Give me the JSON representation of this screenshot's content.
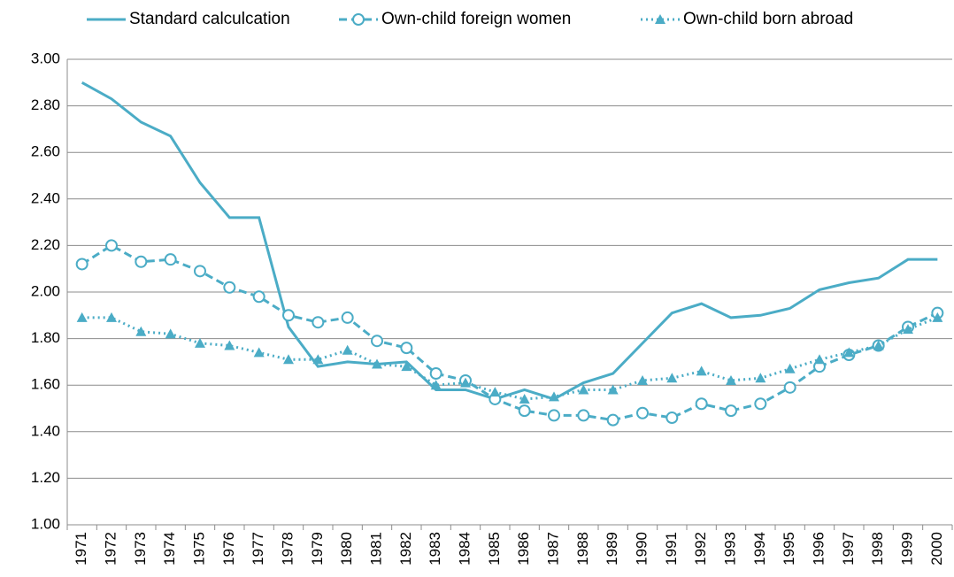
{
  "chart_data": {
    "type": "line",
    "categories": [
      "1971",
      "1972",
      "1973",
      "1974",
      "1975",
      "1976",
      "1977",
      "1978",
      "1979",
      "1980",
      "1981",
      "1982",
      "1983",
      "1984",
      "1985",
      "1986",
      "1987",
      "1988",
      "1989",
      "1990",
      "1991",
      "1992",
      "1993",
      "1994",
      "1995",
      "1996",
      "1997",
      "1998",
      "1999",
      "2000"
    ],
    "series": [
      {
        "name": "Standard calculcation",
        "color": "#4bacc6",
        "style": "solid",
        "marker": "none",
        "values": [
          2.9,
          2.83,
          2.73,
          2.67,
          2.47,
          2.32,
          2.32,
          1.85,
          1.68,
          1.7,
          1.69,
          1.7,
          1.58,
          1.58,
          1.54,
          1.58,
          1.54,
          1.61,
          1.65,
          1.78,
          1.91,
          1.95,
          1.89,
          1.9,
          1.93,
          2.01,
          2.04,
          2.06,
          2.14,
          2.14
        ]
      },
      {
        "name": "Own-child foreign women",
        "color": "#4bacc6",
        "style": "dashed",
        "marker": "circle",
        "values": [
          2.12,
          2.2,
          2.13,
          2.14,
          2.09,
          2.02,
          1.98,
          1.9,
          1.87,
          1.89,
          1.79,
          1.76,
          1.65,
          1.62,
          1.54,
          1.49,
          1.47,
          1.47,
          1.45,
          1.48,
          1.46,
          1.52,
          1.49,
          1.52,
          1.59,
          1.68,
          1.73,
          1.77,
          1.85,
          1.91
        ]
      },
      {
        "name": "Own-child born abroad",
        "color": "#4bacc6",
        "style": "dotted",
        "marker": "triangle",
        "values": [
          1.89,
          1.89,
          1.83,
          1.82,
          1.78,
          1.77,
          1.74,
          1.71,
          1.71,
          1.75,
          1.69,
          1.68,
          1.6,
          1.61,
          1.57,
          1.54,
          1.55,
          1.58,
          1.58,
          1.62,
          1.63,
          1.66,
          1.62,
          1.63,
          1.67,
          1.71,
          1.74,
          1.77,
          1.84,
          1.89
        ]
      }
    ],
    "ylim": [
      1,
      3
    ],
    "yticks": [
      {
        "value": 1,
        "label": "1.00"
      },
      {
        "value": 1.2,
        "label": "1.20"
      },
      {
        "value": 1.4,
        "label": "1.40"
      },
      {
        "value": 1.6,
        "label": "1.60"
      },
      {
        "value": 1.8,
        "label": "1.80"
      },
      {
        "value": 2,
        "label": "2.00"
      },
      {
        "value": 2.2,
        "label": "2.20"
      },
      {
        "value": 2.4,
        "label": "2.40"
      },
      {
        "value": 2.6,
        "label": "2.60"
      },
      {
        "value": 2.8,
        "label": "2.80"
      },
      {
        "value": 3,
        "label": "3.00"
      }
    ],
    "grid": true,
    "legend": "top"
  }
}
